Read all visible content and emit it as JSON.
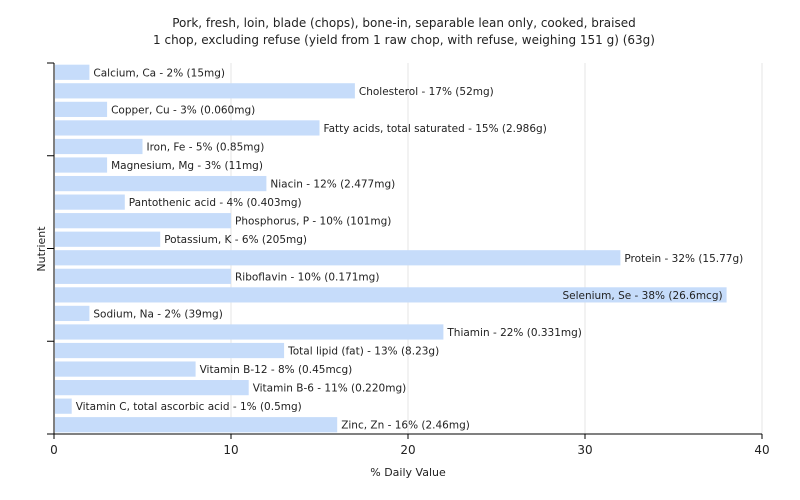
{
  "chart_data": {
    "type": "bar",
    "orientation": "horizontal",
    "title": "Pork, fresh, loin, blade (chops), bone-in, separable lean only, cooked, braised",
    "subtitle": "1 chop, excluding refuse (yield from 1 raw chop, with refuse, weighing 151 g) (63g)",
    "xlabel": "% Daily Value",
    "ylabel": "Nutrient",
    "xlim": [
      0,
      40
    ],
    "xticks": [
      "0",
      "10",
      "20",
      "30",
      "40"
    ],
    "grid": true,
    "bar_color": "#c6dcfa",
    "categories": [
      "Calcium, Ca",
      "Cholesterol",
      "Copper, Cu",
      "Fatty acids, total saturated",
      "Iron, Fe",
      "Magnesium, Mg",
      "Niacin",
      "Pantothenic acid",
      "Phosphorus, P",
      "Potassium, K",
      "Protein",
      "Riboflavin",
      "Selenium, Se",
      "Sodium, Na",
      "Thiamin",
      "Total lipid (fat)",
      "Vitamin B-12",
      "Vitamin B-6",
      "Vitamin C, total ascorbic acid",
      "Zinc, Zn"
    ],
    "values": [
      2,
      17,
      3,
      15,
      5,
      3,
      12,
      4,
      10,
      6,
      32,
      10,
      38,
      2,
      22,
      13,
      8,
      11,
      1,
      16
    ],
    "data_labels": [
      "Calcium, Ca - 2% (15mg)",
      "Cholesterol - 17% (52mg)",
      "Copper, Cu - 3% (0.060mg)",
      "Fatty acids, total saturated - 15% (2.986g)",
      "Iron, Fe - 5% (0.85mg)",
      "Magnesium, Mg - 3% (11mg)",
      "Niacin - 12% (2.477mg)",
      "Pantothenic acid - 4% (0.403mg)",
      "Phosphorus, P - 10% (101mg)",
      "Potassium, K - 6% (205mg)",
      "Protein - 32% (15.77g)",
      "Riboflavin - 10% (0.171mg)",
      "Selenium, Se - 38% (26.6mcg)",
      "Sodium, Na - 2% (39mg)",
      "Thiamin - 22% (0.331mg)",
      "Total lipid (fat) - 13% (8.23g)",
      "Vitamin B-12 - 8% (0.45mcg)",
      "Vitamin B-6 - 11% (0.220mg)",
      "Vitamin C, total ascorbic acid - 1% (0.5mg)",
      "Zinc, Zn - 16% (2.46mg)"
    ]
  }
}
